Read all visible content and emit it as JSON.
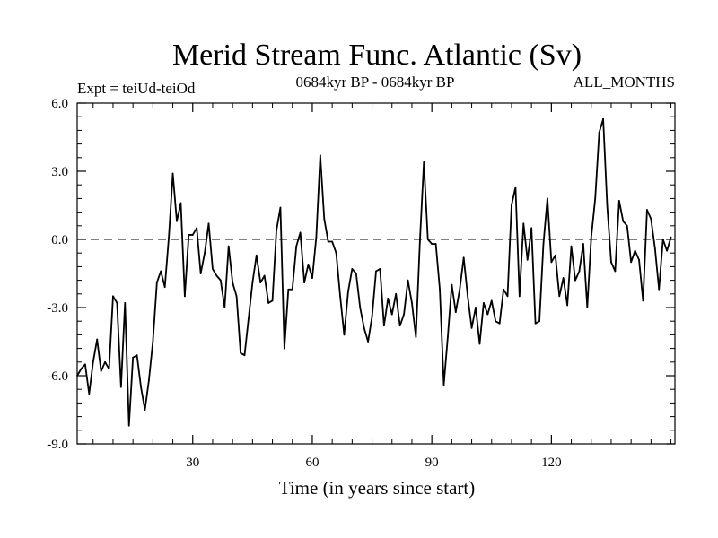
{
  "chart_data": {
    "type": "line",
    "title": "Merid Stream Func. Atlantic (Sv)",
    "subtitle_left": "Expt = teiUd-teiOd",
    "subtitle_center": "0684kyr BP - 0684kyr BP",
    "subtitle_right": "ALL_MONTHS",
    "xlabel": "Time (in years since start)",
    "ylabel": "",
    "xlim": [
      1,
      151
    ],
    "ylim": [
      -9,
      6
    ],
    "x_ticks": [
      30,
      60,
      90,
      120
    ],
    "x_tick_labels": [
      "30",
      "60",
      "90",
      "120"
    ],
    "y_ticks": [
      6,
      3,
      0,
      -3,
      -6,
      -9
    ],
    "y_tick_labels": [
      "6.0",
      "3.0",
      "0.0",
      "-3.0",
      "-6.0",
      "-9.0"
    ],
    "reference_line": {
      "y": 0,
      "style": "dashed"
    },
    "grid": false,
    "series": [
      {
        "name": "Merid Stream Func. Atlantic",
        "x_start": 1,
        "x_step": 1,
        "values": [
          -6.0,
          -5.7,
          -5.5,
          -6.8,
          -5.4,
          -4.4,
          -5.8,
          -5.4,
          -5.7,
          -2.5,
          -2.8,
          -6.5,
          -2.8,
          -8.2,
          -5.2,
          -5.1,
          -6.5,
          -7.5,
          -6.2,
          -4.5,
          -1.9,
          -1.4,
          -2.1,
          0.1,
          2.9,
          0.8,
          1.6,
          -2.5,
          0.2,
          0.2,
          0.5,
          -1.5,
          -0.6,
          0.7,
          -1.3,
          -1.6,
          -1.8,
          -3.0,
          -0.3,
          -1.9,
          -2.5,
          -5.0,
          -5.1,
          -3.5,
          -1.9,
          -0.7,
          -1.9,
          -1.6,
          -2.8,
          -2.7,
          0.4,
          1.4,
          -4.8,
          -2.2,
          -2.2,
          -0.3,
          0.3,
          -1.9,
          -1.1,
          -1.7,
          0.1,
          3.7,
          0.9,
          -0.1,
          -0.1,
          -0.6,
          -2.5,
          -4.2,
          -2.3,
          -1.3,
          -1.5,
          -3.0,
          -3.9,
          -4.5,
          -3.4,
          -1.4,
          -1.3,
          -3.8,
          -2.6,
          -3.3,
          -2.4,
          -3.8,
          -3.3,
          -1.8,
          -2.8,
          -4.3,
          -0.1,
          3.4,
          0.0,
          -0.2,
          -0.2,
          -2.2,
          -6.4,
          -4.3,
          -2.0,
          -3.2,
          -2.2,
          -0.8,
          -2.5,
          -3.9,
          -3.0,
          -4.6,
          -2.8,
          -3.3,
          -2.7,
          -3.6,
          -3.7,
          -2.2,
          -2.5,
          1.5,
          2.3,
          -2.5,
          0.7,
          -0.9,
          0.5,
          -3.7,
          -3.6,
          -0.2,
          1.8,
          -1.0,
          -0.7,
          -2.5,
          -1.7,
          -2.9,
          -0.3,
          -1.8,
          -1.4,
          -0.2,
          -3.0,
          0.1,
          1.8,
          4.7,
          5.3,
          1.5,
          -1.0,
          -1.4,
          1.7,
          0.8,
          0.6,
          -1.0,
          -0.5,
          -0.9,
          -2.7,
          1.3,
          0.9,
          -0.4,
          -2.2,
          0.0,
          -0.5,
          0.1
        ]
      }
    ]
  }
}
